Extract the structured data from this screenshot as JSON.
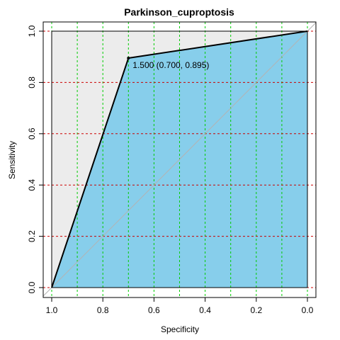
{
  "chart_data": {
    "type": "line",
    "title": "Parkinson_cuproptosis",
    "xlabel": "Specificity",
    "ylabel": "Sensitivity",
    "x_reversed": true,
    "xlim": [
      1.0,
      0.0
    ],
    "ylim": [
      0.0,
      1.0
    ],
    "x_ticks": [
      1.0,
      0.8,
      0.6,
      0.4,
      0.2,
      0.0
    ],
    "x_tick_labels": [
      "1.0",
      "0.8",
      "0.6",
      "0.4",
      "0.2",
      "0.0"
    ],
    "y_ticks": [
      0.0,
      0.2,
      0.4,
      0.6,
      0.8,
      1.0
    ],
    "y_tick_labels": [
      "0.0",
      "0.2",
      "0.4",
      "0.6",
      "0.8",
      "1.0"
    ],
    "grid": {
      "vertical": [
        1.0,
        0.9,
        0.8,
        0.7,
        0.6,
        0.5,
        0.4,
        0.3,
        0.2,
        0.1,
        0.0
      ],
      "horizontal": [
        0.0,
        0.2,
        0.4,
        0.6,
        0.8,
        1.0
      ],
      "vertical_color": "#00cc00",
      "horizontal_color": "#cc0000"
    },
    "series": [
      {
        "x": [
          1.0,
          0.7,
          0.0
        ],
        "y": [
          0.0,
          0.895,
          1.0
        ]
      }
    ],
    "best_threshold": {
      "x": 0.7,
      "y": 0.895,
      "label": "1.500 (0.700, 0.895)"
    },
    "reference_line": {
      "x": [
        1.0,
        0.0
      ],
      "y": [
        0.0,
        1.0
      ]
    },
    "colors": {
      "auc_fill": "#87ceeb",
      "background_fill": "#ececec",
      "curve": "#000000",
      "reference": "#b3b3b3"
    }
  }
}
